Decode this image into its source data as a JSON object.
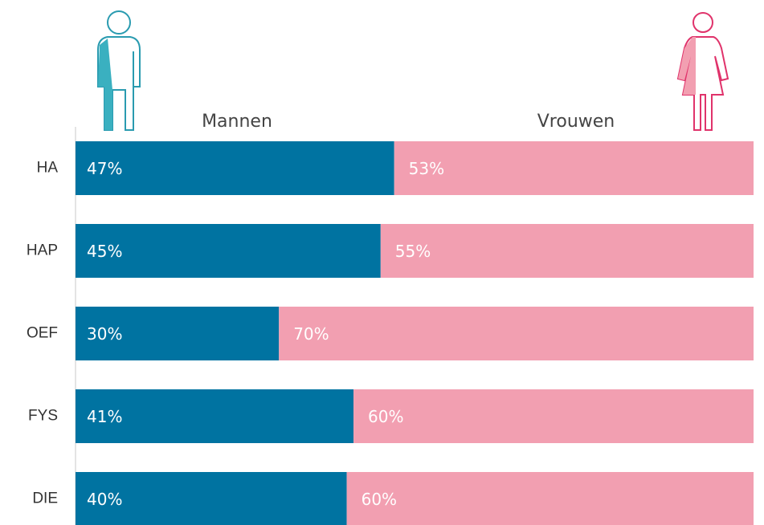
{
  "chart_data": {
    "type": "stacked-barh",
    "categories": [
      "HA",
      "HAP",
      "OEF",
      "FYS",
      "DIE"
    ],
    "series": [
      {
        "name": "Mannen",
        "color": "#0073a1",
        "values": [
          47,
          45,
          30,
          41,
          40
        ],
        "value_labels": [
          "47%",
          "45%",
          "30%",
          "41%",
          "40%"
        ]
      },
      {
        "name": "Vrouwen",
        "color": "#f29fb1",
        "values": [
          53,
          55,
          70,
          60,
          60
        ],
        "value_labels": [
          "53%",
          "55%",
          "70%",
          "60%",
          "60%"
        ]
      }
    ],
    "xlim": [
      0,
      100
    ]
  }
}
